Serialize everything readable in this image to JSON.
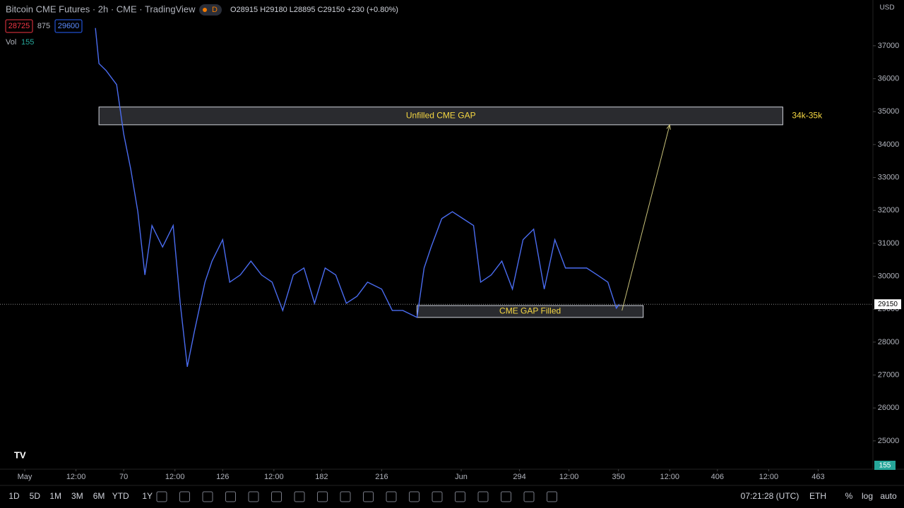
{
  "header": {
    "symbol": "Bitcoin CME Futures · 2h · CME · TradingView",
    "badge": "D",
    "ohlc": "O28915 H29180 L28895 C29150 +230 (+0.80%)",
    "bid": "28725",
    "spread": "875",
    "ask": "29600",
    "volume_label": "Vol",
    "volume": 155,
    "currency": "USD"
  },
  "chart_data": {
    "type": "line",
    "color": "#4a6cf0",
    "x": [
      54,
      56,
      60,
      66,
      70,
      74,
      78,
      82,
      86,
      92,
      98,
      102,
      106,
      110,
      116,
      120,
      126,
      130,
      136,
      142,
      148,
      154,
      160,
      166,
      172,
      178,
      184,
      190,
      196,
      202,
      208,
      216,
      222,
      228,
      236,
      240,
      244,
      250,
      256,
      262,
      268,
      272,
      278,
      284,
      290,
      296,
      302,
      308,
      314,
      320,
      326,
      332,
      338,
      344,
      348.8,
      350.4
    ],
    "series": [
      {
        "values": [
          37540,
          36460,
          36250,
          35820,
          34320,
          33250,
          31960,
          30040,
          31540,
          30890,
          31540,
          29180,
          27250,
          28320,
          29820,
          30460,
          31110,
          29820,
          30040,
          30460,
          30040,
          29820,
          28960,
          30040,
          30250,
          29180,
          30250,
          30040,
          29180,
          29390,
          29820,
          29610,
          28960,
          28960,
          28750,
          30250,
          30890,
          31750,
          31960,
          31750,
          31540,
          29820,
          30040,
          30460,
          29610,
          31110,
          31430,
          29610,
          31110,
          30250,
          30250,
          30250,
          30040,
          29820,
          29030,
          29150
        ]
      }
    ],
    "xlim": [
      0,
      494
    ],
    "ylim": [
      24140,
      38390
    ],
    "xticks": [
      {
        "value": 14,
        "label": "May"
      },
      {
        "value": 43,
        "label": "12:00"
      },
      70,
      {
        "value": 99,
        "label": "12:00"
      },
      126,
      {
        "value": 155,
        "label": "12:00"
      },
      182,
      216,
      {
        "value": 261,
        "label": "Jun"
      },
      294,
      {
        "value": 322,
        "label": "12:00"
      },
      350,
      {
        "value": 379,
        "label": "12:00"
      },
      406,
      {
        "value": 435,
        "label": "12:00"
      },
      463
    ],
    "yticks": [
      25000,
      26000,
      27000,
      28000,
      29000,
      30000,
      31000,
      32000,
      33000,
      34000,
      35000,
      36000,
      37000
    ],
    "last_price": 29150,
    "zones": [
      {
        "label": "Unfilled CME GAP",
        "side_label": "34k-35k",
        "x": [
          56,
          443
        ],
        "y": [
          34600,
          35140
        ]
      },
      {
        "label": "CME GAP Filled",
        "x": [
          236,
          364
        ],
        "y": [
          28750,
          29110
        ]
      }
    ],
    "arrow": {
      "x": [
        352,
        379
      ],
      "y": [
        28960,
        34600
      ],
      "color": "#c9c27a"
    }
  },
  "toolbar": {
    "ranges": [
      "1D",
      "5D",
      "1M",
      "3M",
      "6M",
      "YTD",
      "1Y"
    ],
    "clock": "07:21:28 (UTC)",
    "session": "ETH",
    "options": [
      "%",
      "log",
      "auto"
    ]
  }
}
